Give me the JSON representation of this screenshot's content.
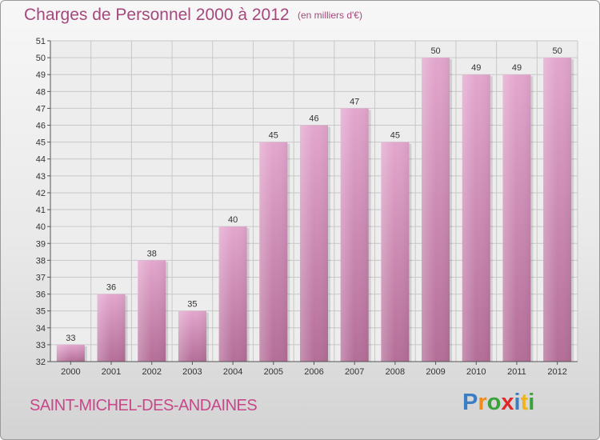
{
  "header": {
    "title": "Charges de Personnel 2000 à 2012",
    "subtitle": "(en milliers d'€)"
  },
  "footer": {
    "commune": "SAINT-MICHEL-DES-ANDAINES",
    "logo_letters": [
      "P",
      "r",
      "o",
      "x",
      "i",
      "t",
      "i"
    ],
    "logo_colors": [
      "#3a7fc4",
      "#f08c1a",
      "#3aa23a",
      "#e02a2a",
      "#3a7fc4",
      "#f0b41a",
      "#3aa23a"
    ]
  },
  "colors": {
    "bar_top": "#e3a6cd",
    "bar_bottom": "#b46e98",
    "grid": "#c8c8c8",
    "title": "#a5487c"
  },
  "chart_data": {
    "type": "bar",
    "categories": [
      "2000",
      "2001",
      "2002",
      "2003",
      "2004",
      "2005",
      "2006",
      "2007",
      "2008",
      "2009",
      "2010",
      "2011",
      "2012"
    ],
    "values": [
      33,
      36,
      38,
      35,
      40,
      45,
      46,
      47,
      45,
      50,
      49,
      49,
      50
    ],
    "ylim": [
      32,
      51
    ],
    "yticks": [
      32,
      33,
      34,
      35,
      36,
      37,
      38,
      39,
      40,
      41,
      42,
      43,
      44,
      45,
      46,
      47,
      48,
      49,
      50,
      51
    ],
    "grid": true,
    "data_labels": true
  }
}
